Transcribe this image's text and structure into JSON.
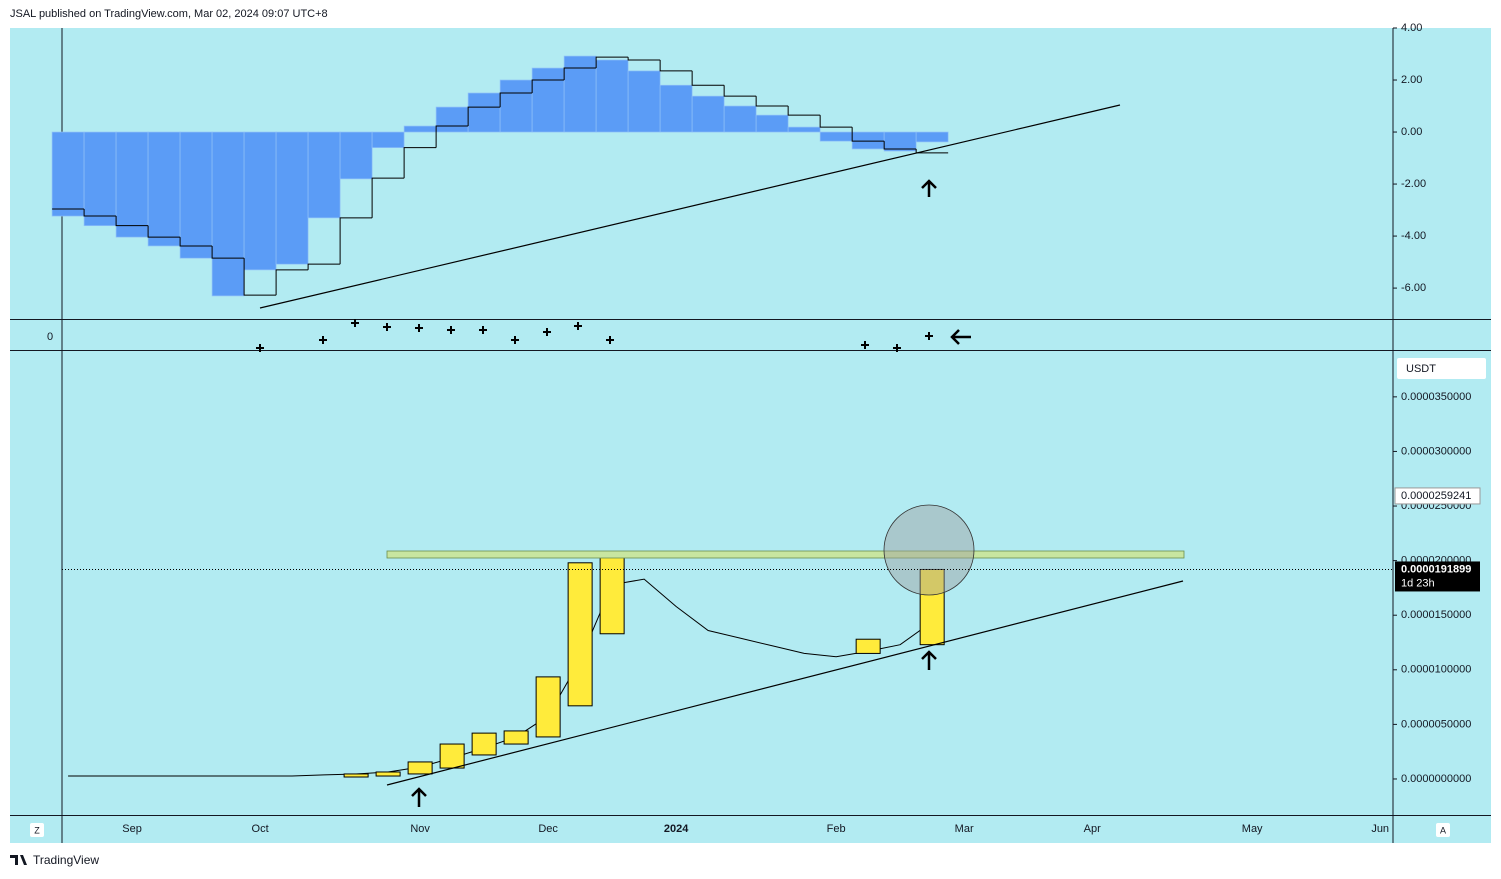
{
  "header": "JSAL published on TradingView.com, Mar 02, 2024 09:07 UTC+8",
  "footer": "TradingView",
  "indicator_label": "0",
  "left_button": "Z",
  "right_button": "A",
  "chart_data": [
    {
      "type": "histogram-step",
      "ylim": [
        -7.15,
        4.0
      ],
      "yticks": [
        {
          "value": 4,
          "label": "4.00"
        },
        {
          "value": 2,
          "label": "2.00"
        },
        {
          "value": 0,
          "label": "0.00"
        },
        {
          "value": -2,
          "label": "-2.00"
        },
        {
          "value": -4,
          "label": "-4.00"
        },
        {
          "value": -6,
          "label": "-6.00"
        }
      ],
      "xlim": [
        -0.19,
        41.4
      ],
      "color": "#5b9cf6",
      "line_color": "#000000",
      "values": [
        -3.23,
        -3.6,
        -4.04,
        -4.38,
        -4.85,
        -6.3,
        -5.3,
        -5.08,
        -3.3,
        -1.8,
        -0.6,
        0.23,
        0.96,
        1.5,
        2.0,
        2.46,
        2.92,
        2.77,
        2.35,
        1.8,
        1.38,
        1.0,
        0.65,
        0.19,
        -0.35,
        -0.65,
        -0.73,
        -0.38
      ],
      "line_values": [
        -2.96,
        -3.23,
        -3.6,
        -4.04,
        -4.38,
        -4.85,
        -6.27,
        -5.3,
        -5.08,
        -3.3,
        -1.77,
        -0.6,
        0.23,
        0.96,
        1.5,
        2.0,
        2.46,
        2.88,
        2.77,
        2.35,
        1.8,
        1.38,
        1.0,
        0.65,
        0.19,
        -0.35,
        -0.65,
        -0.8
      ]
    },
    {
      "type": "candlestick",
      "currency": "USDT",
      "ylim": [
        -3.3e-06,
        3.92e-05
      ],
      "yticks": [
        {
          "value": 0,
          "label": "0.0000000000"
        },
        {
          "value": 5e-06,
          "label": "0.0000050000"
        },
        {
          "value": 1e-05,
          "label": "0.0000100000"
        },
        {
          "value": 1.5e-05,
          "label": "0.0000150000"
        },
        {
          "value": 2e-05,
          "label": "0.0000200000"
        },
        {
          "value": 2.5e-05,
          "label": "0.0000250000"
        },
        {
          "value": 3e-05,
          "label": "0.0000300000"
        },
        {
          "value": 3.5e-05,
          "label": "0.0000350000"
        }
      ],
      "xlim": [
        -0.19,
        41.4
      ],
      "xticks": [
        {
          "value": 2,
          "label": "Sep"
        },
        {
          "value": 6,
          "label": "Oct"
        },
        {
          "value": 11,
          "label": "Nov"
        },
        {
          "value": 15,
          "label": "Dec"
        },
        {
          "value": 19,
          "label": "2024"
        },
        {
          "value": 24,
          "label": "Feb"
        },
        {
          "value": 28,
          "label": "Mar"
        },
        {
          "value": 32,
          "label": "Apr"
        },
        {
          "value": 37,
          "label": "May"
        },
        {
          "value": 41,
          "label": "Jun"
        }
      ],
      "color": "#ffeb3b",
      "open": [
        null,
        null,
        null,
        null,
        null,
        null,
        null,
        null,
        null,
        1.8e-07,
        2.7e-07,
        4.6e-07,
        1e-06,
        2.2e-06,
        3.2e-06,
        3.85e-06,
        6.7e-06,
        1.33e-05,
        null,
        null,
        null,
        null,
        null,
        null,
        null,
        1.15e-05,
        null,
        1.23e-05
      ],
      "close": [
        null,
        null,
        null,
        null,
        null,
        null,
        null,
        null,
        null,
        4.6e-07,
        6.4e-07,
        1.56e-06,
        3.2e-06,
        4.2e-06,
        4.4e-06,
        9.35e-06,
        1.98e-05,
        2.03e-05,
        null,
        null,
        null,
        null,
        null,
        null,
        null,
        1.28e-05,
        null,
        1.91899e-05
      ],
      "line_values": [
        2.7e-07,
        2.7e-07,
        2.7e-07,
        2.7e-07,
        2.7e-07,
        2.7e-07,
        2.7e-07,
        2.7e-07,
        3.7e-07,
        4.6e-07,
        6.4e-07,
        1.1e-06,
        1.92e-06,
        2.84e-06,
        3.85e-06,
        5.77e-06,
        1.09e-05,
        1.78e-05,
        1.83e-05,
        1.58e-05,
        1.36e-05,
        1.29e-05,
        1.22e-05,
        1.15e-05,
        1.12e-05,
        1.17e-05,
        1.23e-05,
        1.44e-05
      ],
      "marker_label": {
        "value": 2.59241e-05,
        "label": "0.0000259241"
      },
      "last_price": {
        "value": 1.91899e-05,
        "label": "0.0000191899"
      },
      "countdown": "1d 23h"
    }
  ]
}
